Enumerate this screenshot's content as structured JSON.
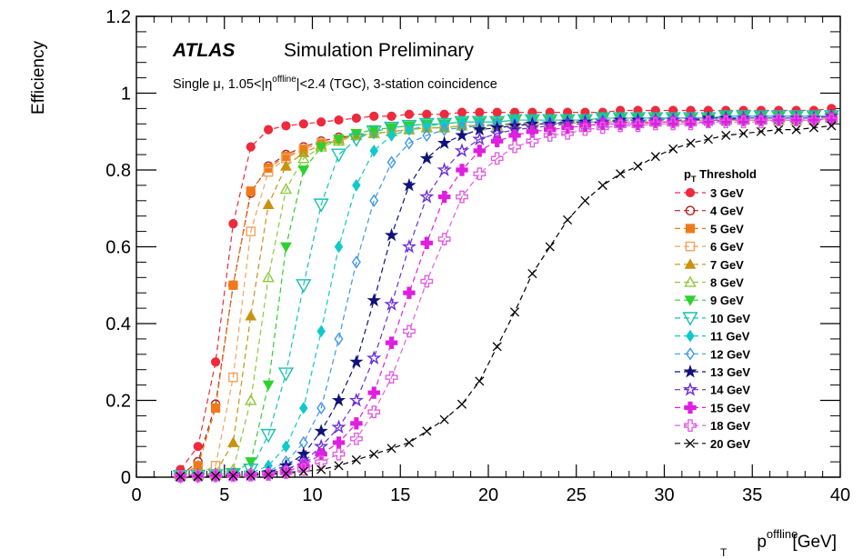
{
  "chart_data": {
    "type": "scatter",
    "header": {
      "brand": "ATLAS",
      "title": "Simulation Preliminary",
      "subtitle_prefix": "Single μ, 1.05<|η",
      "subtitle_sup": "offline",
      "subtitle_suffix": "|<2.4 (TGC), 3-station coincidence"
    },
    "ylabel": "Efficiency",
    "xlabel": {
      "main": "p",
      "sub": "T",
      "sup": "offline",
      "unit": "[GeV]"
    },
    "xlim": [
      0,
      40
    ],
    "ylim": [
      0,
      1.2
    ],
    "x_ticks": [
      "0",
      "5",
      "10",
      "15",
      "20",
      "25",
      "30",
      "35",
      "40"
    ],
    "y_ticks": [
      "0",
      "0.2",
      "0.4",
      "0.6",
      "0.8",
      "1",
      "1.2"
    ],
    "legend": {
      "title_main": "p",
      "title_sub": "T",
      "title_rest": "Threshold",
      "position": "right"
    },
    "x": [
      2.5,
      3.5,
      4.5,
      5.5,
      6.5,
      7.5,
      8.5,
      9.5,
      10.5,
      11.5,
      12.5,
      13.5,
      14.5,
      15.5,
      16.5,
      17.5,
      18.5,
      19.5,
      20.5,
      21.5,
      22.5,
      23.5,
      24.5,
      25.5,
      26.5,
      27.5,
      28.5,
      29.5,
      30.5,
      31.5,
      32.5,
      33.5,
      34.5,
      35.5,
      36.5,
      37.5,
      38.5,
      39.5
    ],
    "series": [
      {
        "name": "3 GeV",
        "color": "#ee2a3c",
        "marker": "circle-filled",
        "threshold": 3,
        "values": [
          0.02,
          0.08,
          0.3,
          0.66,
          0.86,
          0.905,
          0.915,
          0.92,
          0.925,
          0.93,
          0.935,
          0.94,
          0.94,
          0.945,
          0.945,
          0.945,
          0.95,
          0.95,
          0.95,
          0.95,
          0.95,
          0.95,
          0.95,
          0.95,
          0.95,
          0.955,
          0.955,
          0.955,
          0.955,
          0.955,
          0.955,
          0.955,
          0.955,
          0.955,
          0.955,
          0.955,
          0.955,
          0.96
        ]
      },
      {
        "name": "4 GeV",
        "color": "#b0201a",
        "marker": "circle-open",
        "threshold": 4,
        "values": [
          0.005,
          0.04,
          0.19,
          0.5,
          0.74,
          0.81,
          0.84,
          0.86,
          0.875,
          0.885,
          0.89,
          0.895,
          0.9,
          0.905,
          0.91,
          0.91,
          0.915,
          0.915,
          0.915,
          0.92,
          0.92,
          0.92,
          0.92,
          0.925,
          0.925,
          0.925,
          0.925,
          0.925,
          0.925,
          0.93,
          0.93,
          0.93,
          0.93,
          0.93,
          0.93,
          0.93,
          0.93,
          0.935
        ]
      },
      {
        "name": "5 GeV",
        "color": "#f07a1a",
        "marker": "square-filled",
        "threshold": 5,
        "values": [
          0.005,
          0.03,
          0.18,
          0.5,
          0.745,
          0.805,
          0.835,
          0.855,
          0.87,
          0.88,
          0.89,
          0.895,
          0.9,
          0.905,
          0.91,
          0.91,
          0.915,
          0.915,
          0.915,
          0.92,
          0.92,
          0.92,
          0.92,
          0.925,
          0.925,
          0.925,
          0.925,
          0.925,
          0.925,
          0.93,
          0.93,
          0.93,
          0.93,
          0.93,
          0.93,
          0.93,
          0.93,
          0.935
        ]
      },
      {
        "name": "6 GeV",
        "color": "#f2a35e",
        "marker": "square-open",
        "threshold": 6,
        "values": [
          0.003,
          0.008,
          0.03,
          0.26,
          0.64,
          0.795,
          0.83,
          0.855,
          0.87,
          0.88,
          0.89,
          0.895,
          0.9,
          0.905,
          0.91,
          0.91,
          0.915,
          0.915,
          0.915,
          0.92,
          0.92,
          0.92,
          0.92,
          0.925,
          0.925,
          0.925,
          0.925,
          0.925,
          0.925,
          0.93,
          0.93,
          0.93,
          0.93,
          0.93,
          0.93,
          0.93,
          0.93,
          0.935
        ]
      },
      {
        "name": "7 GeV",
        "color": "#c9930e",
        "marker": "triangle-up-filled",
        "threshold": 7,
        "values": [
          0.003,
          0.005,
          0.012,
          0.09,
          0.42,
          0.71,
          0.81,
          0.845,
          0.865,
          0.88,
          0.89,
          0.895,
          0.9,
          0.905,
          0.91,
          0.91,
          0.915,
          0.915,
          0.915,
          0.92,
          0.92,
          0.92,
          0.92,
          0.925,
          0.925,
          0.925,
          0.925,
          0.925,
          0.925,
          0.93,
          0.93,
          0.93,
          0.93,
          0.93,
          0.93,
          0.93,
          0.93,
          0.935
        ]
      },
      {
        "name": "8 GeV",
        "color": "#8fc83c",
        "marker": "triangle-up-open",
        "threshold": 8,
        "values": [
          0.003,
          0.004,
          0.006,
          0.02,
          0.2,
          0.52,
          0.75,
          0.83,
          0.86,
          0.875,
          0.89,
          0.895,
          0.9,
          0.905,
          0.91,
          0.91,
          0.915,
          0.915,
          0.915,
          0.92,
          0.92,
          0.92,
          0.92,
          0.925,
          0.925,
          0.925,
          0.925,
          0.925,
          0.925,
          0.93,
          0.93,
          0.93,
          0.93,
          0.93,
          0.93,
          0.93,
          0.93,
          0.935
        ]
      },
      {
        "name": "9 GeV",
        "color": "#2ed12e",
        "marker": "triangle-down-filled",
        "threshold": 9,
        "values": [
          0.003,
          0.004,
          0.005,
          0.01,
          0.04,
          0.24,
          0.6,
          0.8,
          0.86,
          0.88,
          0.895,
          0.905,
          0.91,
          0.915,
          0.92,
          0.92,
          0.925,
          0.925,
          0.925,
          0.93,
          0.93,
          0.93,
          0.93,
          0.93,
          0.935,
          0.935,
          0.935,
          0.935,
          0.935,
          0.935,
          0.935,
          0.94,
          0.94,
          0.94,
          0.94,
          0.94,
          0.94,
          0.94
        ]
      },
      {
        "name": "10 GeV",
        "color": "#17c2b0",
        "marker": "triangle-down-open",
        "threshold": 10,
        "values": [
          0.003,
          0.004,
          0.005,
          0.008,
          0.02,
          0.11,
          0.27,
          0.5,
          0.71,
          0.84,
          0.88,
          0.9,
          0.91,
          0.915,
          0.92,
          0.92,
          0.925,
          0.925,
          0.925,
          0.93,
          0.93,
          0.93,
          0.93,
          0.93,
          0.935,
          0.935,
          0.935,
          0.935,
          0.935,
          0.935,
          0.935,
          0.94,
          0.94,
          0.94,
          0.94,
          0.94,
          0.94,
          0.94
        ]
      },
      {
        "name": "11 GeV",
        "color": "#10c9c9",
        "marker": "diamond-filled",
        "threshold": 11,
        "values": [
          0.003,
          0.004,
          0.005,
          0.007,
          0.01,
          0.03,
          0.08,
          0.18,
          0.38,
          0.6,
          0.76,
          0.85,
          0.89,
          0.905,
          0.915,
          0.92,
          0.925,
          0.925,
          0.925,
          0.93,
          0.93,
          0.93,
          0.93,
          0.93,
          0.935,
          0.935,
          0.935,
          0.935,
          0.935,
          0.935,
          0.935,
          0.94,
          0.94,
          0.94,
          0.94,
          0.94,
          0.94,
          0.94
        ]
      },
      {
        "name": "12 GeV",
        "color": "#3f97e8",
        "marker": "diamond-open",
        "threshold": 12,
        "values": [
          0.003,
          0.004,
          0.005,
          0.006,
          0.008,
          0.015,
          0.04,
          0.09,
          0.18,
          0.36,
          0.56,
          0.72,
          0.82,
          0.87,
          0.89,
          0.905,
          0.91,
          0.915,
          0.92,
          0.92,
          0.925,
          0.925,
          0.925,
          0.93,
          0.93,
          0.93,
          0.93,
          0.93,
          0.935,
          0.935,
          0.935,
          0.935,
          0.935,
          0.935,
          0.935,
          0.935,
          0.935,
          0.94
        ]
      },
      {
        "name": "13 GeV",
        "color": "#10127a",
        "marker": "star-filled",
        "threshold": 13,
        "values": [
          0.003,
          0.004,
          0.005,
          0.006,
          0.007,
          0.012,
          0.03,
          0.06,
          0.12,
          0.2,
          0.3,
          0.46,
          0.63,
          0.76,
          0.83,
          0.87,
          0.89,
          0.905,
          0.91,
          0.915,
          0.92,
          0.92,
          0.925,
          0.925,
          0.925,
          0.93,
          0.93,
          0.93,
          0.93,
          0.93,
          0.935,
          0.935,
          0.935,
          0.935,
          0.935,
          0.935,
          0.935,
          0.94
        ]
      },
      {
        "name": "14 GeV",
        "color": "#6a2ed6",
        "marker": "star-open",
        "threshold": 14,
        "values": [
          0.003,
          0.004,
          0.004,
          0.005,
          0.006,
          0.01,
          0.02,
          0.04,
          0.08,
          0.13,
          0.2,
          0.31,
          0.45,
          0.6,
          0.73,
          0.8,
          0.85,
          0.88,
          0.895,
          0.905,
          0.91,
          0.915,
          0.92,
          0.92,
          0.925,
          0.925,
          0.925,
          0.93,
          0.93,
          0.93,
          0.93,
          0.93,
          0.935,
          0.935,
          0.935,
          0.935,
          0.935,
          0.94
        ]
      },
      {
        "name": "15 GeV",
        "color": "#e01ee0",
        "marker": "cross-filled",
        "threshold": 15,
        "values": [
          0.003,
          0.003,
          0.004,
          0.005,
          0.006,
          0.008,
          0.015,
          0.03,
          0.06,
          0.09,
          0.14,
          0.22,
          0.35,
          0.48,
          0.61,
          0.73,
          0.8,
          0.85,
          0.875,
          0.89,
          0.9,
          0.905,
          0.91,
          0.915,
          0.92,
          0.92,
          0.92,
          0.925,
          0.925,
          0.925,
          0.925,
          0.93,
          0.93,
          0.93,
          0.93,
          0.93,
          0.93,
          0.935
        ]
      },
      {
        "name": "18 GeV",
        "color": "#e060e0",
        "marker": "cross-open",
        "threshold": 18,
        "values": [
          0.002,
          0.003,
          0.004,
          0.004,
          0.005,
          0.007,
          0.012,
          0.02,
          0.04,
          0.06,
          0.1,
          0.17,
          0.26,
          0.38,
          0.51,
          0.62,
          0.73,
          0.79,
          0.83,
          0.86,
          0.875,
          0.89,
          0.895,
          0.905,
          0.91,
          0.915,
          0.915,
          0.92,
          0.92,
          0.92,
          0.925,
          0.925,
          0.925,
          0.925,
          0.93,
          0.93,
          0.93,
          0.93
        ]
      },
      {
        "name": "20 GeV",
        "color": "#000000",
        "marker": "x",
        "threshold": 20,
        "values": [
          0.002,
          0.002,
          0.003,
          0.004,
          0.005,
          0.007,
          0.01,
          0.015,
          0.02,
          0.03,
          0.045,
          0.06,
          0.075,
          0.09,
          0.12,
          0.15,
          0.19,
          0.25,
          0.34,
          0.43,
          0.53,
          0.6,
          0.67,
          0.72,
          0.76,
          0.79,
          0.81,
          0.835,
          0.855,
          0.87,
          0.88,
          0.89,
          0.895,
          0.9,
          0.905,
          0.905,
          0.91,
          0.915
        ]
      }
    ]
  }
}
